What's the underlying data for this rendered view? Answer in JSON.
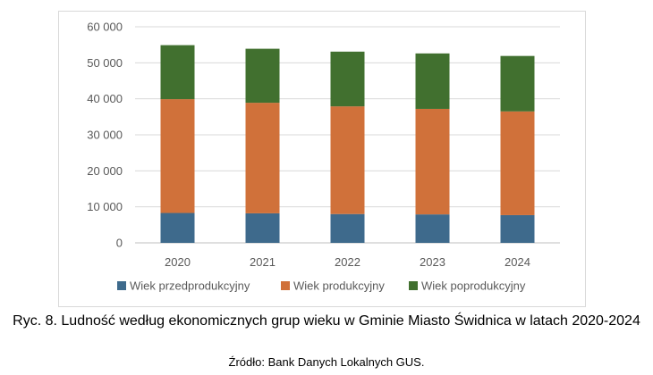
{
  "chart_data": {
    "type": "bar",
    "stacked": true,
    "categories": [
      "2020",
      "2021",
      "2022",
      "2023",
      "2024"
    ],
    "series": [
      {
        "name": "Wiek przedprodukcyjny",
        "color": "#3e6a8c",
        "values": [
          8300,
          8200,
          8000,
          7900,
          7700
        ]
      },
      {
        "name": "Wiek produkcyjny",
        "color": "#d0713a",
        "values": [
          31600,
          30700,
          29900,
          29300,
          28800
        ]
      },
      {
        "name": "Wiek poprodukcyjny",
        "color": "#41702f",
        "values": [
          15000,
          15000,
          15200,
          15400,
          15400
        ]
      }
    ],
    "yticks": [
      "0",
      "10 000",
      "20 000",
      "30 000",
      "40 000",
      "50 000",
      "60 000"
    ],
    "ylim": [
      0,
      60000
    ],
    "grid": true,
    "legend_position": "bottom"
  },
  "caption": "Ryc. 8. Ludność według ekonomicznych grup wieku w Gminie Miasto Świdnica w latach 2020-2024",
  "source": "Źródło: Bank Danych Lokalnych GUS."
}
